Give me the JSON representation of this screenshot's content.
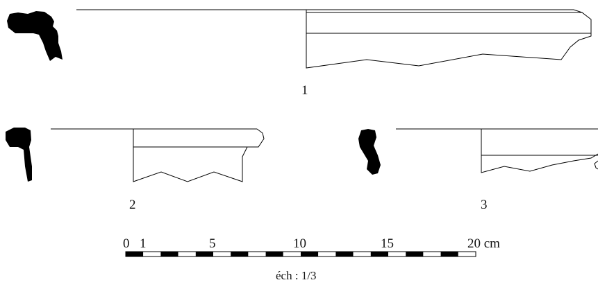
{
  "figures": [
    {
      "label": "1"
    },
    {
      "label": "2"
    },
    {
      "label": "3"
    }
  ],
  "scale_bar": {
    "ticks": [
      "0",
      "1",
      "5",
      "10",
      "15",
      "20 cm"
    ],
    "caption": "éch : 1/3",
    "colors": {
      "dark": "#000000",
      "light": "#ffffff"
    }
  }
}
